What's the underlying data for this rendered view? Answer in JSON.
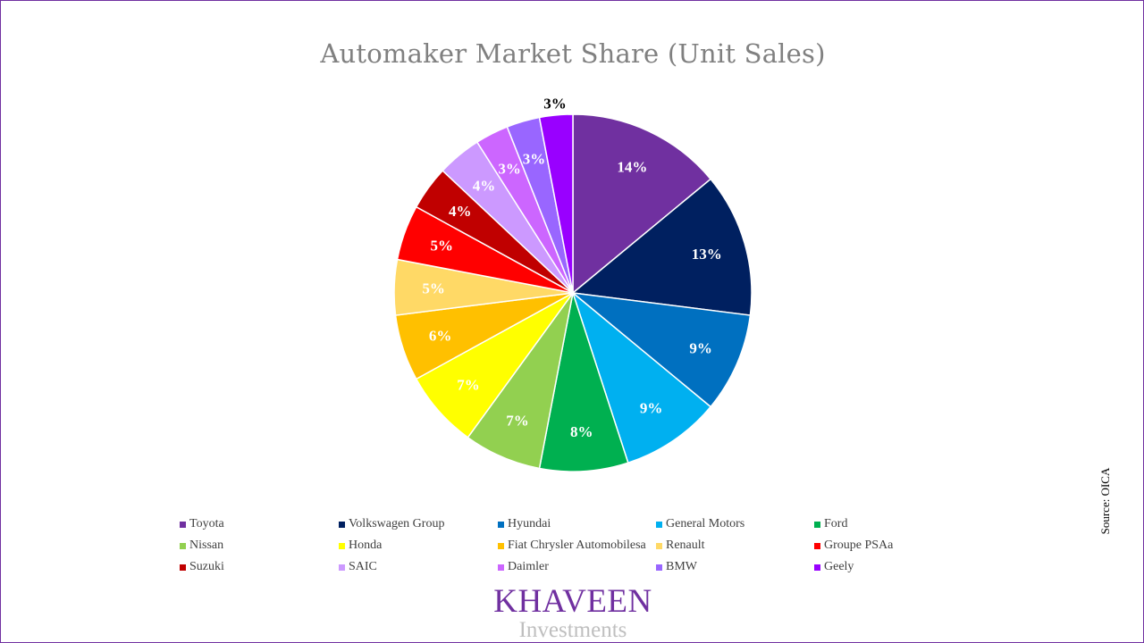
{
  "chart_data": {
    "type": "pie",
    "title": "Automaker Market Share (Unit Sales)",
    "slices": [
      {
        "label": "Toyota",
        "value": 14,
        "display": "14%",
        "color": "#7030a0"
      },
      {
        "label": "Volkswagen Group",
        "value": 13,
        "display": "13%",
        "color": "#002060"
      },
      {
        "label": "Hyundai",
        "value": 9,
        "display": "9%",
        "color": "#0070c0"
      },
      {
        "label": "General Motors",
        "value": 9,
        "display": "9%",
        "color": "#00b0f0"
      },
      {
        "label": "Ford",
        "value": 8,
        "display": "8%",
        "color": "#00b050"
      },
      {
        "label": "Nissan",
        "value": 7,
        "display": "7%",
        "color": "#92d050"
      },
      {
        "label": "Honda",
        "value": 7,
        "display": "7%",
        "color": "#ffff00"
      },
      {
        "label": "Fiat Chrysler Automobilesa",
        "value": 6,
        "display": "6%",
        "color": "#ffc000"
      },
      {
        "label": "Renault",
        "value": 5,
        "display": "5%",
        "color": "#ffd966"
      },
      {
        "label": "Groupe PSAa",
        "value": 5,
        "display": "5%",
        "color": "#ff0000"
      },
      {
        "label": "Suzuki",
        "value": 4,
        "display": "4%",
        "color": "#c00000"
      },
      {
        "label": "SAIC",
        "value": 4,
        "display": "4%",
        "color": "#cc99ff"
      },
      {
        "label": "Daimler",
        "value": 3,
        "display": "3%",
        "color": "#cc66ff"
      },
      {
        "label": "BMW",
        "value": 3,
        "display": "3%",
        "color": "#9966ff"
      },
      {
        "label": "Geely",
        "value": 3,
        "display": "3%",
        "color": "#9900ff"
      }
    ],
    "legend": "bottom"
  },
  "source": "Source: OICA",
  "logo": {
    "main": "KHAVEEN",
    "sub": "Investments"
  }
}
